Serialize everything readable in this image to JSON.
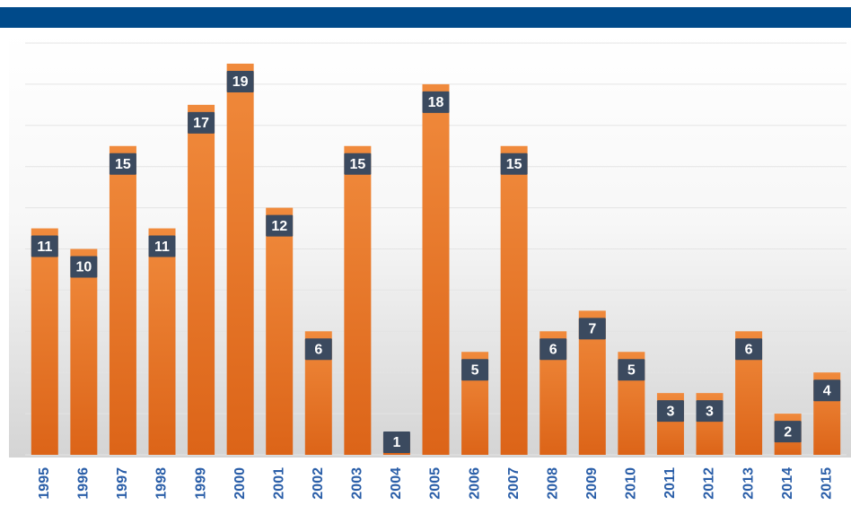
{
  "chart_data": {
    "type": "bar",
    "categories": [
      "1995",
      "1996",
      "1997",
      "1998",
      "1999",
      "2000",
      "2001",
      "2002",
      "2003",
      "2004",
      "2005",
      "2006",
      "2007",
      "2008",
      "2009",
      "2010",
      "2011",
      "2012",
      "2013",
      "2014",
      "2015"
    ],
    "values": [
      11,
      10,
      15,
      11,
      17,
      19,
      12,
      6,
      15,
      1,
      18,
      5,
      15,
      6,
      7,
      5,
      3,
      3,
      6,
      2,
      4
    ],
    "color": "#e8732a",
    "ylim": [
      0,
      20
    ],
    "yticks": [
      0,
      2,
      4,
      6,
      8,
      10,
      12,
      14,
      16,
      18,
      20
    ],
    "grid": true
  }
}
